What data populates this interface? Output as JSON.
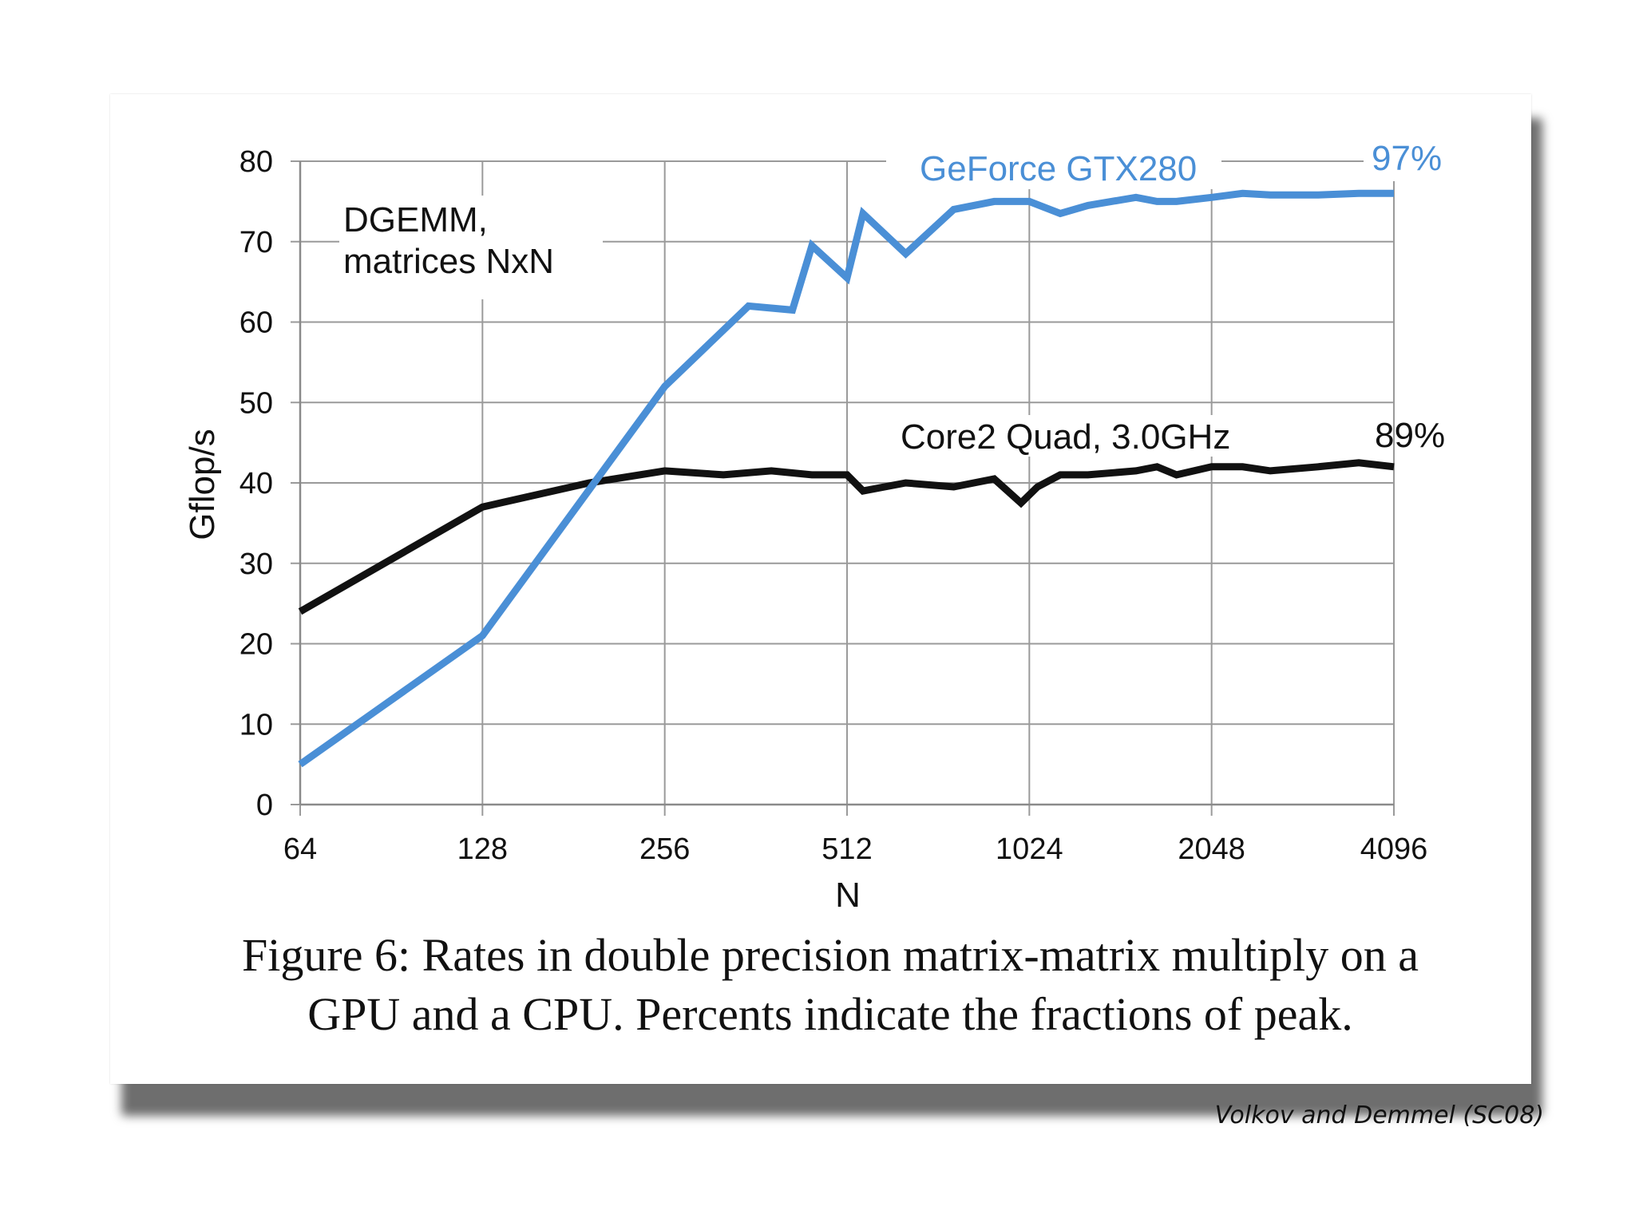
{
  "chart_data": {
    "type": "line",
    "title": "",
    "xlabel": "N",
    "ylabel": "Gflop/s",
    "x_scale": "log2",
    "x_ticks": [
      "64",
      "128",
      "256",
      "512",
      "1024",
      "2048",
      "4096"
    ],
    "y_ticks": [
      "0",
      "10",
      "20",
      "30",
      "40",
      "50",
      "60",
      "70",
      "80"
    ],
    "ylim": [
      0,
      80
    ],
    "xlim": [
      64,
      4096
    ],
    "grid": true,
    "series": [
      {
        "name": "GeForce GTX280",
        "label": "GeForce GTX280",
        "peak_label": "97%",
        "color": "#4a8fd6",
        "x": [
          64,
          128,
          256,
          352,
          416,
          448,
          512,
          544,
          640,
          768,
          896,
          1024,
          1152,
          1280,
          1536,
          1664,
          1792,
          2048,
          2304,
          2560,
          3072,
          3584,
          4096
        ],
        "y": [
          5,
          21,
          52,
          62,
          61.5,
          69.5,
          65.5,
          73.5,
          68.5,
          74,
          75,
          75,
          73.5,
          74.5,
          75.5,
          75,
          75,
          75.5,
          76,
          75.8,
          75.8,
          76,
          76
        ]
      },
      {
        "name": "Core2 Quad, 3.0GHz",
        "label": "Core2 Quad, 3.0GHz",
        "peak_label": "89%",
        "color": "#111111",
        "x": [
          64,
          128,
          192,
          256,
          320,
          384,
          448,
          512,
          544,
          640,
          768,
          896,
          992,
          1056,
          1152,
          1280,
          1536,
          1664,
          1792,
          2048,
          2304,
          2560,
          3072,
          3584,
          4096
        ],
        "y": [
          24,
          37,
          40,
          41.5,
          41,
          41.5,
          41,
          41,
          39,
          40,
          39.5,
          40.5,
          37.5,
          39.5,
          41,
          41,
          41.5,
          42,
          41,
          42,
          42,
          41.5,
          42,
          42.5,
          42
        ]
      }
    ],
    "annotations": [
      "DGEMM,",
      "matrices NxN"
    ]
  },
  "caption": {
    "line1": "Figure 6: Rates in double precision matrix-matrix multiply on a",
    "line2": "GPU and a CPU. Percents indicate the fractions of peak."
  },
  "credit": "Volkov and Demmel (SC08)"
}
